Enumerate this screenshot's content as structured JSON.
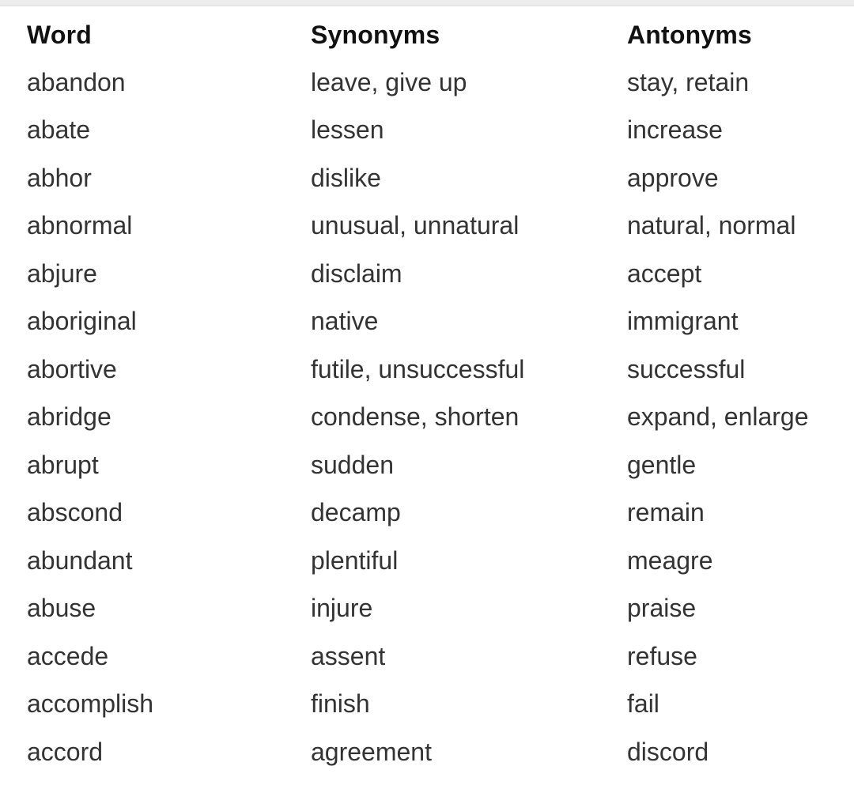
{
  "table": {
    "headers": [
      "Word",
      "Synonyms",
      "Antonyms"
    ],
    "rows": [
      [
        "abandon",
        "leave, give up",
        "stay, retain"
      ],
      [
        "abate",
        "lessen",
        "increase"
      ],
      [
        "abhor",
        "dislike",
        "approve"
      ],
      [
        "abnormal",
        "unusual, unnatural",
        "natural, normal"
      ],
      [
        "abjure",
        "disclaim",
        "accept"
      ],
      [
        "aboriginal",
        "native",
        "immigrant"
      ],
      [
        "abortive",
        "futile, unsuccessful",
        "successful"
      ],
      [
        "abridge",
        "condense, shorten",
        "expand, enlarge"
      ],
      [
        "abrupt",
        "sudden",
        "gentle"
      ],
      [
        "abscond",
        "decamp",
        "remain"
      ],
      [
        "abundant",
        "plentiful",
        "meagre"
      ],
      [
        "abuse",
        "injure",
        "praise"
      ],
      [
        "accede",
        "assent",
        "refuse"
      ],
      [
        "accomplish",
        "finish",
        "fail"
      ],
      [
        "accord",
        "agreement",
        "discord"
      ]
    ]
  }
}
